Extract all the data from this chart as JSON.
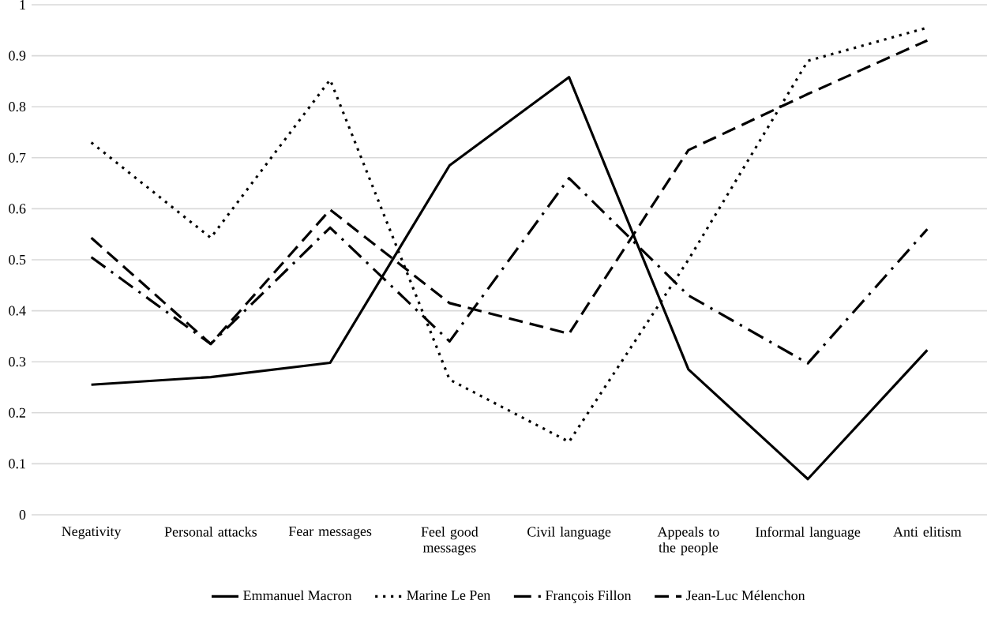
{
  "chart_data": {
    "type": "line",
    "categories": [
      "Negativity",
      "Personal attacks",
      "Fear messages",
      "Feel good messages",
      "Civil language",
      "Appeals to the people",
      "Informal language",
      "Anti elitism"
    ],
    "series": [
      {
        "name": "Emmanuel Macron",
        "color": "#000000",
        "line_style": "solid",
        "values": [
          0.255,
          0.27,
          0.298,
          0.685,
          0.858,
          0.285,
          0.07,
          0.323
        ]
      },
      {
        "name": "Marine Le Pen",
        "color": "#000000",
        "line_style": "dotted",
        "values": [
          0.73,
          0.543,
          0.853,
          0.265,
          0.143,
          0.5,
          0.89,
          0.955
        ]
      },
      {
        "name": "François Fillon",
        "color": "#000000",
        "line_style": "dashdot",
        "values": [
          0.505,
          0.335,
          0.563,
          0.34,
          0.66,
          0.43,
          0.297,
          0.56
        ]
      },
      {
        "name": "Jean-Luc Mélenchon",
        "color": "#000000",
        "line_style": "dashed",
        "values": [
          0.543,
          0.335,
          0.598,
          0.415,
          0.355,
          0.715,
          0.825,
          0.93
        ]
      }
    ],
    "ylim": [
      0,
      1
    ],
    "yticks": [
      0,
      0.1,
      0.2,
      0.3,
      0.4,
      0.5,
      0.6,
      0.7,
      0.8,
      0.9,
      1
    ],
    "grid": "y",
    "legend": "bottom",
    "marker": "none"
  }
}
